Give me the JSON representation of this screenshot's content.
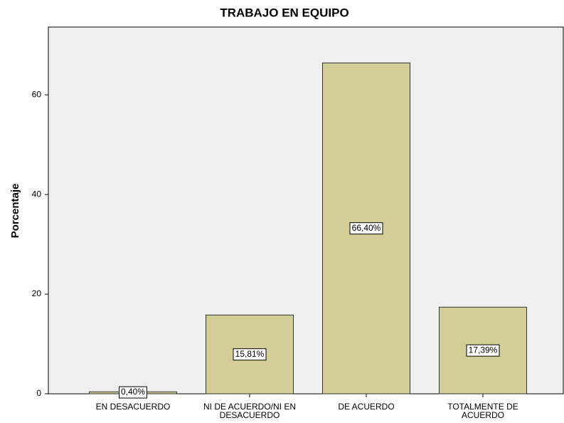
{
  "chart_data": {
    "type": "bar",
    "title": "TRABAJO EN EQUIPO",
    "y_label": "Porcentaje",
    "categories": [
      "EN DESACUERDO",
      "NI DE ACUERDO/NI EN DESACUERDO",
      "DE ACUERDO",
      "TOTALMENTE DE ACUERDO"
    ],
    "values": [
      0.4,
      15.81,
      66.4,
      17.39
    ],
    "value_labels": [
      "0,40%",
      "15,81%",
      "66,40%",
      "17,39%"
    ],
    "color": "#d3ce97",
    "ylim": [
      0,
      73.6
    ],
    "yticks": [
      0,
      20,
      40,
      60
    ],
    "grid": false
  }
}
